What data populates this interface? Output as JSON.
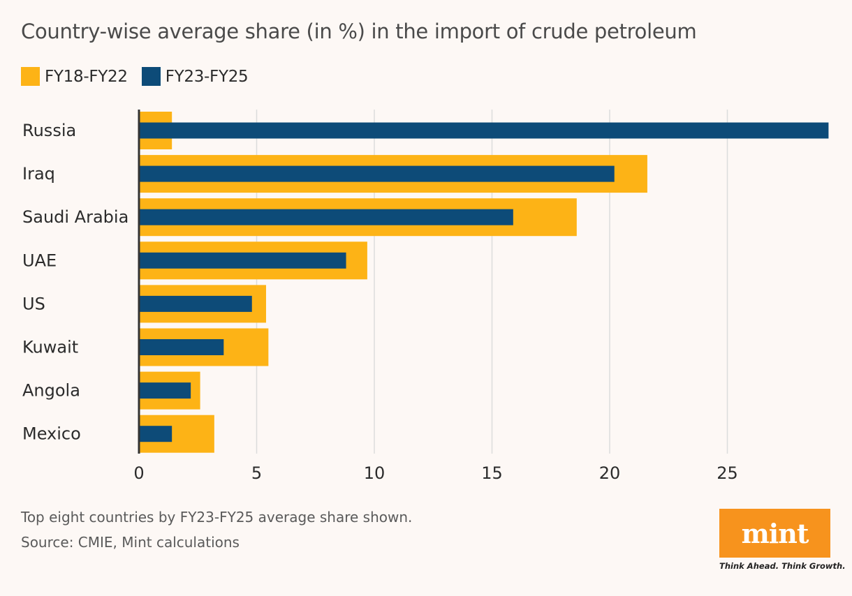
{
  "title": "Country-wise average share (in %) in the import of crude petroleum",
  "footnote": "Top eight countries by FY23-FY25 average share shown.",
  "source": "Source: CMIE, Mint calculations",
  "logo": {
    "word": "mint",
    "tagline": "Think Ahead. Think Growth.",
    "color": "#f7931d"
  },
  "colors": {
    "fy18_fy22": "#fdb316",
    "fy23_fy25": "#0d4b78",
    "grid": "#dcdcdc",
    "axis": "#333333"
  },
  "chart_data": {
    "type": "bar",
    "orientation": "horizontal",
    "categories": [
      "Russia",
      "Iraq",
      "Saudi Arabia",
      "UAE",
      "US",
      "Kuwait",
      "Angola",
      "Mexico"
    ],
    "series": [
      {
        "name": "FY18-FY22",
        "color": "#fdb316",
        "values": [
          1.4,
          21.6,
          18.6,
          9.7,
          5.4,
          5.5,
          2.6,
          3.2
        ]
      },
      {
        "name": "FY23-FY25",
        "color": "#0d4b78",
        "values": [
          29.3,
          20.2,
          15.9,
          8.8,
          4.8,
          3.6,
          2.2,
          1.4
        ]
      }
    ],
    "xlim": [
      0,
      29.3
    ],
    "xticks": [
      0,
      5,
      10,
      15,
      20,
      25
    ],
    "grid": true,
    "legend": "top-left"
  }
}
